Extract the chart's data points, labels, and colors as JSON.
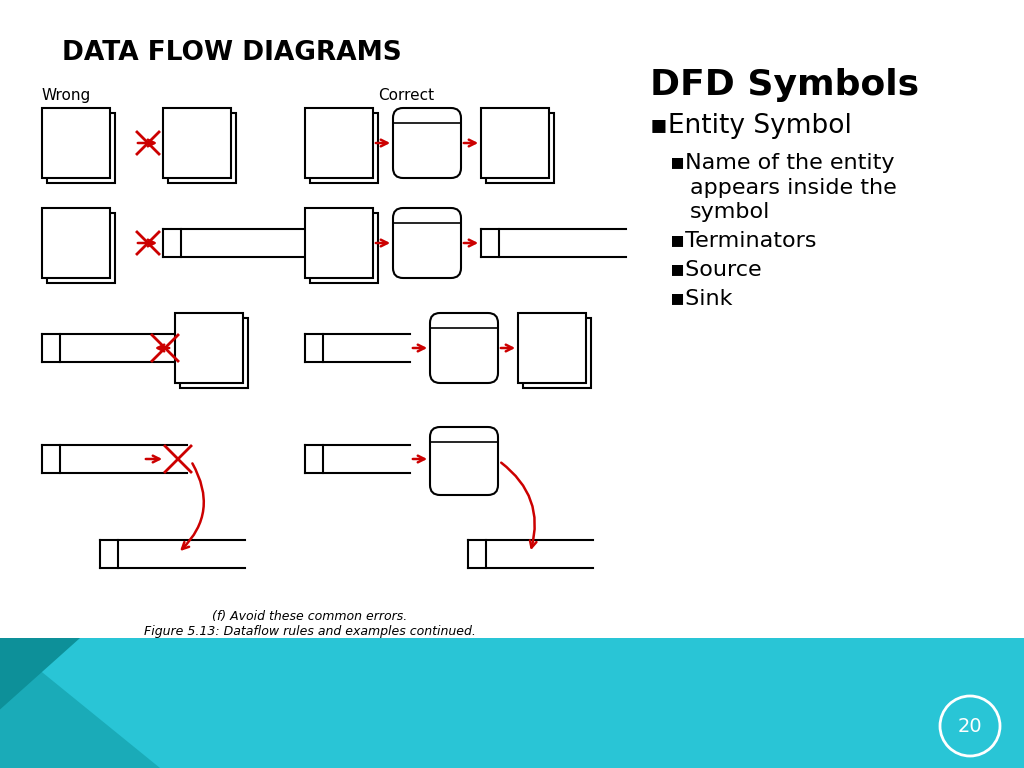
{
  "title": "DATA FLOW DIAGRAMS",
  "bg_color": "#ffffff",
  "teal_color": "#29c5d6",
  "teal_dark": "#1aabb8",
  "teal_darker": "#0d9099",
  "title_fontsize": 18,
  "wrong_label": "Wrong",
  "correct_label": "Correct",
  "caption_f": "(f) Avoid these common errors.",
  "figure_caption": "Figure 5.13: Dataflow rules and examples continued.",
  "page_number": "20",
  "dfd_title": "DFD Symbols",
  "bullet1": "Entity Symbol",
  "sub_bullet1a": "Name of the entity",
  "sub_bullet1b": "appears inside the",
  "sub_bullet1c": "symbol",
  "sub_bullet2": "Terminators",
  "sub_bullet3": "Source",
  "sub_bullet4": "Sink",
  "red_color": "#cc0000",
  "black_color": "#000000"
}
